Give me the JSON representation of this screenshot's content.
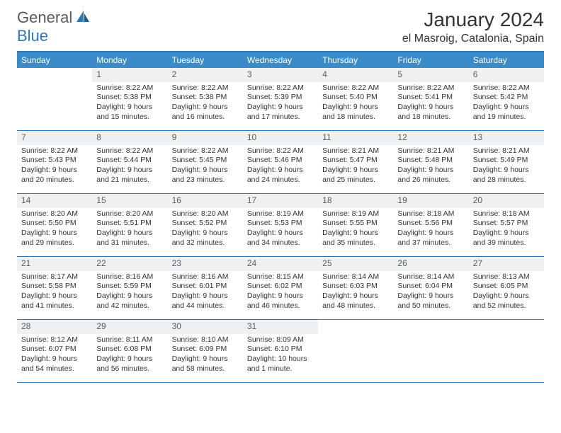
{
  "logo": {
    "text1": "General",
    "text2": "Blue"
  },
  "title": "January 2024",
  "location": "el Masroig, Catalonia, Spain",
  "colors": {
    "header_bg": "#3b8bc9",
    "header_text": "#ffffff",
    "border": "#2f78b8",
    "daynum_bg": "#eef0f1",
    "daynum_text": "#5a5f63",
    "body_text": "#333333",
    "logo_gray": "#555a5f",
    "logo_blue": "#2f78b8"
  },
  "weekdays": [
    "Sunday",
    "Monday",
    "Tuesday",
    "Wednesday",
    "Thursday",
    "Friday",
    "Saturday"
  ],
  "weeks": [
    [
      {
        "n": "",
        "sunrise": "",
        "sunset": "",
        "daylight": ""
      },
      {
        "n": "1",
        "sunrise": "Sunrise: 8:22 AM",
        "sunset": "Sunset: 5:38 PM",
        "daylight": "Daylight: 9 hours and 15 minutes."
      },
      {
        "n": "2",
        "sunrise": "Sunrise: 8:22 AM",
        "sunset": "Sunset: 5:38 PM",
        "daylight": "Daylight: 9 hours and 16 minutes."
      },
      {
        "n": "3",
        "sunrise": "Sunrise: 8:22 AM",
        "sunset": "Sunset: 5:39 PM",
        "daylight": "Daylight: 9 hours and 17 minutes."
      },
      {
        "n": "4",
        "sunrise": "Sunrise: 8:22 AM",
        "sunset": "Sunset: 5:40 PM",
        "daylight": "Daylight: 9 hours and 18 minutes."
      },
      {
        "n": "5",
        "sunrise": "Sunrise: 8:22 AM",
        "sunset": "Sunset: 5:41 PM",
        "daylight": "Daylight: 9 hours and 18 minutes."
      },
      {
        "n": "6",
        "sunrise": "Sunrise: 8:22 AM",
        "sunset": "Sunset: 5:42 PM",
        "daylight": "Daylight: 9 hours and 19 minutes."
      }
    ],
    [
      {
        "n": "7",
        "sunrise": "Sunrise: 8:22 AM",
        "sunset": "Sunset: 5:43 PM",
        "daylight": "Daylight: 9 hours and 20 minutes."
      },
      {
        "n": "8",
        "sunrise": "Sunrise: 8:22 AM",
        "sunset": "Sunset: 5:44 PM",
        "daylight": "Daylight: 9 hours and 21 minutes."
      },
      {
        "n": "9",
        "sunrise": "Sunrise: 8:22 AM",
        "sunset": "Sunset: 5:45 PM",
        "daylight": "Daylight: 9 hours and 23 minutes."
      },
      {
        "n": "10",
        "sunrise": "Sunrise: 8:22 AM",
        "sunset": "Sunset: 5:46 PM",
        "daylight": "Daylight: 9 hours and 24 minutes."
      },
      {
        "n": "11",
        "sunrise": "Sunrise: 8:21 AM",
        "sunset": "Sunset: 5:47 PM",
        "daylight": "Daylight: 9 hours and 25 minutes."
      },
      {
        "n": "12",
        "sunrise": "Sunrise: 8:21 AM",
        "sunset": "Sunset: 5:48 PM",
        "daylight": "Daylight: 9 hours and 26 minutes."
      },
      {
        "n": "13",
        "sunrise": "Sunrise: 8:21 AM",
        "sunset": "Sunset: 5:49 PM",
        "daylight": "Daylight: 9 hours and 28 minutes."
      }
    ],
    [
      {
        "n": "14",
        "sunrise": "Sunrise: 8:20 AM",
        "sunset": "Sunset: 5:50 PM",
        "daylight": "Daylight: 9 hours and 29 minutes."
      },
      {
        "n": "15",
        "sunrise": "Sunrise: 8:20 AM",
        "sunset": "Sunset: 5:51 PM",
        "daylight": "Daylight: 9 hours and 31 minutes."
      },
      {
        "n": "16",
        "sunrise": "Sunrise: 8:20 AM",
        "sunset": "Sunset: 5:52 PM",
        "daylight": "Daylight: 9 hours and 32 minutes."
      },
      {
        "n": "17",
        "sunrise": "Sunrise: 8:19 AM",
        "sunset": "Sunset: 5:53 PM",
        "daylight": "Daylight: 9 hours and 34 minutes."
      },
      {
        "n": "18",
        "sunrise": "Sunrise: 8:19 AM",
        "sunset": "Sunset: 5:55 PM",
        "daylight": "Daylight: 9 hours and 35 minutes."
      },
      {
        "n": "19",
        "sunrise": "Sunrise: 8:18 AM",
        "sunset": "Sunset: 5:56 PM",
        "daylight": "Daylight: 9 hours and 37 minutes."
      },
      {
        "n": "20",
        "sunrise": "Sunrise: 8:18 AM",
        "sunset": "Sunset: 5:57 PM",
        "daylight": "Daylight: 9 hours and 39 minutes."
      }
    ],
    [
      {
        "n": "21",
        "sunrise": "Sunrise: 8:17 AM",
        "sunset": "Sunset: 5:58 PM",
        "daylight": "Daylight: 9 hours and 41 minutes."
      },
      {
        "n": "22",
        "sunrise": "Sunrise: 8:16 AM",
        "sunset": "Sunset: 5:59 PM",
        "daylight": "Daylight: 9 hours and 42 minutes."
      },
      {
        "n": "23",
        "sunrise": "Sunrise: 8:16 AM",
        "sunset": "Sunset: 6:01 PM",
        "daylight": "Daylight: 9 hours and 44 minutes."
      },
      {
        "n": "24",
        "sunrise": "Sunrise: 8:15 AM",
        "sunset": "Sunset: 6:02 PM",
        "daylight": "Daylight: 9 hours and 46 minutes."
      },
      {
        "n": "25",
        "sunrise": "Sunrise: 8:14 AM",
        "sunset": "Sunset: 6:03 PM",
        "daylight": "Daylight: 9 hours and 48 minutes."
      },
      {
        "n": "26",
        "sunrise": "Sunrise: 8:14 AM",
        "sunset": "Sunset: 6:04 PM",
        "daylight": "Daylight: 9 hours and 50 minutes."
      },
      {
        "n": "27",
        "sunrise": "Sunrise: 8:13 AM",
        "sunset": "Sunset: 6:05 PM",
        "daylight": "Daylight: 9 hours and 52 minutes."
      }
    ],
    [
      {
        "n": "28",
        "sunrise": "Sunrise: 8:12 AM",
        "sunset": "Sunset: 6:07 PM",
        "daylight": "Daylight: 9 hours and 54 minutes."
      },
      {
        "n": "29",
        "sunrise": "Sunrise: 8:11 AM",
        "sunset": "Sunset: 6:08 PM",
        "daylight": "Daylight: 9 hours and 56 minutes."
      },
      {
        "n": "30",
        "sunrise": "Sunrise: 8:10 AM",
        "sunset": "Sunset: 6:09 PM",
        "daylight": "Daylight: 9 hours and 58 minutes."
      },
      {
        "n": "31",
        "sunrise": "Sunrise: 8:09 AM",
        "sunset": "Sunset: 6:10 PM",
        "daylight": "Daylight: 10 hours and 1 minute."
      },
      {
        "n": "",
        "sunrise": "",
        "sunset": "",
        "daylight": ""
      },
      {
        "n": "",
        "sunrise": "",
        "sunset": "",
        "daylight": ""
      },
      {
        "n": "",
        "sunrise": "",
        "sunset": "",
        "daylight": ""
      }
    ]
  ]
}
